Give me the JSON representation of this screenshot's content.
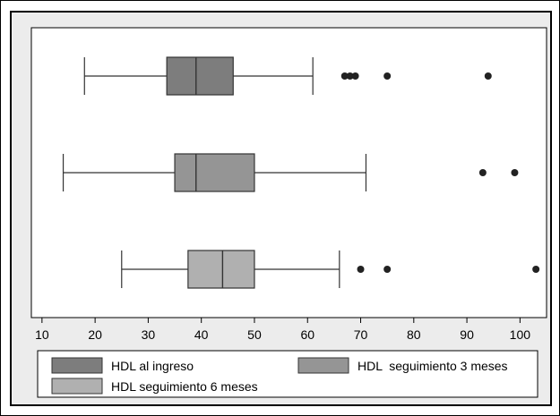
{
  "chart_data": {
    "type": "boxplot",
    "orientation": "horizontal",
    "title": "",
    "xlabel": "",
    "ylabel": "",
    "xlim": [
      8,
      105
    ],
    "xticks": [
      10,
      20,
      30,
      40,
      50,
      60,
      70,
      80,
      90,
      100
    ],
    "grid": false,
    "legend_position": "bottom",
    "series": [
      {
        "name": "HDL al ingreso",
        "color": "#7d7d7d",
        "whisker_low": 18,
        "q1": 33.5,
        "median": 39,
        "q3": 46,
        "whisker_high": 61,
        "outliers": [
          67,
          68,
          69,
          75,
          94
        ]
      },
      {
        "name": "HDL  seguimiento 3 meses",
        "color": "#959595",
        "whisker_low": 14,
        "q1": 35,
        "median": 39,
        "q3": 50,
        "whisker_high": 71,
        "outliers": [
          93,
          99
        ]
      },
      {
        "name": "HDL seguimiento 6 meses",
        "color": "#b0b0b0",
        "whisker_low": 25,
        "q1": 37.5,
        "median": 44,
        "q3": 50,
        "whisker_high": 66,
        "outliers": [
          70,
          75,
          103
        ]
      }
    ],
    "colors": {
      "panel_bg": "#ececec",
      "plot_bg": "#ffffff",
      "outline": "#333333",
      "outlier": "#222222"
    }
  }
}
